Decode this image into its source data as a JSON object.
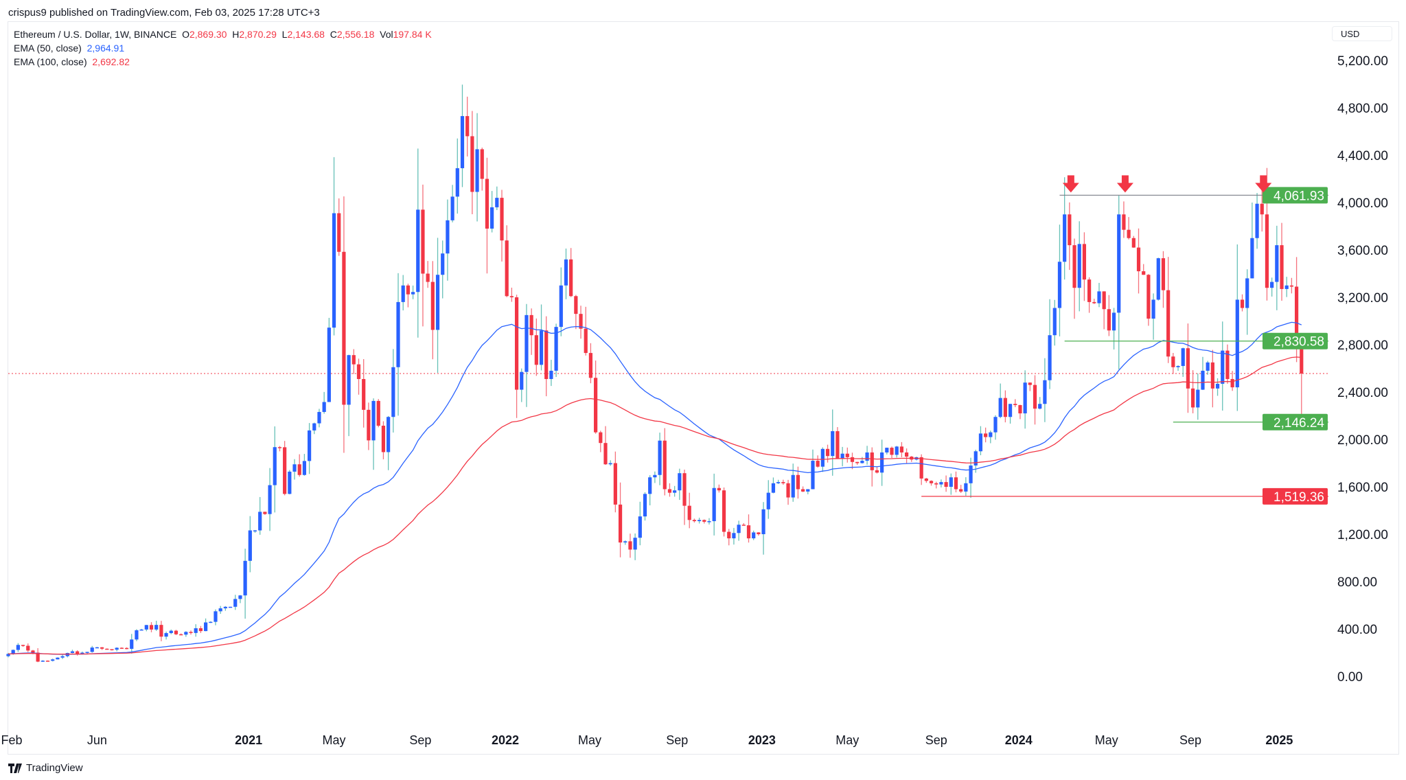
{
  "header": {
    "published": "crispus9 published on TradingView.com, Feb 03, 2025 17:28 UTC+3"
  },
  "legend": {
    "symbol": "Ethereum / U.S. Dollar, 1W, BINANCE",
    "o_label": "O",
    "o": "2,869.30",
    "h_label": "H",
    "h": "2,870.29",
    "l_label": "L",
    "l": "2,143.68",
    "c_label": "C",
    "c": "2,556.18",
    "vol_label": "Vol",
    "vol": "197.84 K",
    "ema50_label": "EMA (50, close)",
    "ema50": "2,964.91",
    "ema100_label": "EMA (100, close)",
    "ema100": "2,692.82"
  },
  "currency": "USD",
  "watermark": "TradingView",
  "colors": {
    "up": "#2962ff",
    "up_wick": "#26a69a",
    "down": "#f23645",
    "ema50": "#2962ff",
    "ema100": "#f23645",
    "support": "#4caf50",
    "resistance_line": "#787b86"
  },
  "chart_data": {
    "type": "candlestick",
    "interval": "1W",
    "ylim": [
      -600,
      5400
    ],
    "y_ticks": [
      "0.00",
      "400.00",
      "800.00",
      "1,200.00",
      "1,600.00",
      "2,000.00",
      "2,400.00",
      "2,800.00",
      "3,200.00",
      "3,600.00",
      "4,000.00",
      "4,400.00",
      "4,800.00",
      "5,200.00"
    ],
    "y_tick_values": [
      0,
      400,
      800,
      1200,
      1600,
      2000,
      2400,
      2800,
      3200,
      3600,
      4000,
      4400,
      4800,
      5200
    ],
    "x_ticks": [
      {
        "label": "Feb",
        "bold": false
      },
      {
        "label": "Jun",
        "bold": false
      },
      {
        "label": "2021",
        "bold": true
      },
      {
        "label": "May",
        "bold": false
      },
      {
        "label": "Sep",
        "bold": false
      },
      {
        "label": "2022",
        "bold": true
      },
      {
        "label": "May",
        "bold": false
      },
      {
        "label": "Sep",
        "bold": false
      },
      {
        "label": "2023",
        "bold": true
      },
      {
        "label": "May",
        "bold": false
      },
      {
        "label": "Sep",
        "bold": false
      },
      {
        "label": "2024",
        "bold": true
      },
      {
        "label": "May",
        "bold": false
      },
      {
        "label": "Sep",
        "bold": false
      },
      {
        "label": "2025",
        "bold": true
      }
    ],
    "x_tick_weeks": [
      0.7,
      18,
      48.7,
      66,
      83.5,
      100.7,
      117.8,
      135.5,
      152.7,
      170,
      188,
      204.7,
      222.5,
      239.5,
      257.5
    ],
    "first_open": 170,
    "closes": [
      189,
      223,
      265,
      258,
      218,
      200,
      124,
      132,
      131,
      143,
      158,
      170,
      197,
      211,
      187,
      200,
      206,
      243,
      245,
      233,
      229,
      225,
      241,
      239,
      232,
      311,
      389,
      395,
      433,
      395,
      434,
      335,
      365,
      385,
      355,
      352,
      375,
      366,
      406,
      382,
      455,
      460,
      549,
      574,
      587,
      587,
      653,
      683,
      975,
      1232,
      1232,
      1389,
      1370,
      1614,
      1935,
      1934,
      1540,
      1728,
      1790,
      1700,
      1818,
      2076,
      2136,
      2232,
      2316,
      2944,
      3910,
      3584,
      2293,
      2712,
      2634,
      2510,
      2250,
      1992,
      2325,
      2116,
      1893,
      2190,
      2610,
      3160,
      3300,
      3225,
      3245,
      3940,
      3400,
      3330,
      2925,
      3390,
      3570,
      3850,
      4050,
      4290,
      4730,
      4560,
      4090,
      4450,
      4200,
      3780,
      3960,
      4040,
      3680,
      3210,
      3200,
      2420,
      2570,
      3050,
      2880,
      2630,
      2920,
      2510,
      2580,
      2950,
      3300,
      3520,
      3210,
      3060,
      2935,
      2730,
      2520,
      2060,
      1970,
      1790,
      1800,
      1450,
      1130,
      1140,
      1070,
      1170,
      1350,
      1540,
      1680,
      1700,
      1990,
      1580,
      1550,
      1570,
      1715,
      1440,
      1320,
      1310,
      1320,
      1305,
      1310,
      1590,
      1570,
      1220,
      1165,
      1210,
      1280,
      1275,
      1165,
      1215,
      1200,
      1410,
      1550,
      1630,
      1640,
      1630,
      1510,
      1700,
      1580,
      1560,
      1580,
      1820,
      1770,
      1920,
      1860,
      2070,
      1840,
      1880,
      1850,
      1810,
      1800,
      1820,
      1890,
      1740,
      1720,
      1890,
      1930,
      1870,
      1940,
      1890,
      1855,
      1830,
      1850,
      1670,
      1650,
      1630,
      1620,
      1640,
      1600,
      1680,
      1580,
      1560,
      1630,
      1780,
      1900,
      2050,
      2020,
      2060,
      2190,
      2350,
      2190,
      2300,
      2290,
      2220,
      2480,
      2460,
      2260,
      2300,
      2500,
      2880,
      3110,
      3500,
      3900,
      3640,
      3280,
      3650,
      3350,
      3160,
      3150,
      3250,
      3100,
      2920,
      3070,
      3900,
      3770,
      3700,
      3620,
      3420,
      3390,
      3020,
      3180,
      3530,
      3260,
      2700,
      2610,
      2620,
      2770,
      2430,
      2270,
      2420,
      2580,
      2650,
      2430,
      2470,
      2750,
      2510,
      2440,
      3180,
      3110,
      3360,
      3700,
      3990,
      3900,
      3280,
      3330,
      3640,
      3270,
      3300,
      3290,
      2869,
      2556.18
    ],
    "last_candle": {
      "open": 2869.3,
      "high": 2870.29,
      "low": 2143.68,
      "close": 2556.18
    },
    "ema_periods": [
      50,
      100
    ],
    "levels": [
      {
        "value": 4061.93,
        "label": "4,061.93",
        "color": "#4caf50",
        "line": "#787b86",
        "from_week": 213
      },
      {
        "value": 2830.58,
        "label": "2,830.58",
        "color": "#4caf50",
        "line": "#4caf50",
        "from_week": 214
      },
      {
        "value": 2146.24,
        "label": "2,146.24",
        "color": "#4caf50",
        "line": "#4caf50",
        "from_week": 236
      },
      {
        "value": 1519.36,
        "label": "1,519.36",
        "color": "#f23645",
        "line": "#f23645",
        "from_week": 185
      }
    ],
    "current_price": 2556.18,
    "arrow_weeks": [
      215,
      226,
      254
    ]
  }
}
